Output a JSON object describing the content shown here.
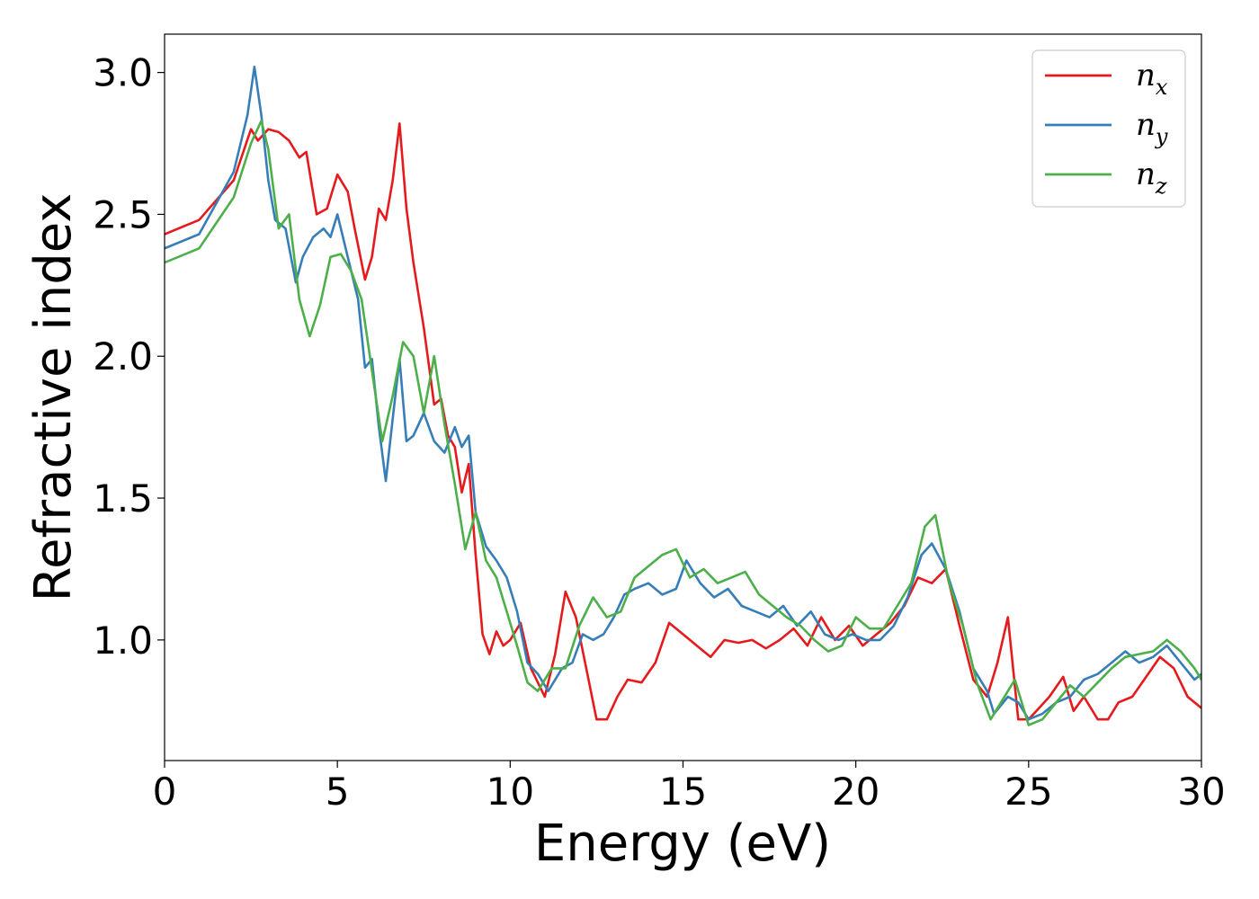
{
  "chart_data": {
    "type": "line",
    "xlabel": "Energy (eV)",
    "ylabel": "Refractive index",
    "xlim": [
      0,
      30
    ],
    "ylim": [
      0.575,
      3.135
    ],
    "xticks": [
      0,
      5,
      10,
      15,
      20,
      25,
      30
    ],
    "yticks": [
      1.0,
      1.5,
      2.0,
      2.5,
      3.0
    ],
    "grid": false,
    "legend_position": "top-right",
    "series": [
      {
        "name": "n_x",
        "label_base": "n",
        "label_sub": "x",
        "color": "#e41a1c",
        "x": [
          0,
          1,
          2,
          2.5,
          2.7,
          3,
          3.3,
          3.6,
          3.9,
          4.1,
          4.4,
          4.7,
          5,
          5.3,
          5.5,
          5.8,
          6,
          6.2,
          6.4,
          6.6,
          6.8,
          7,
          7.2,
          7.5,
          7.8,
          8,
          8.2,
          8.4,
          8.6,
          8.8,
          9,
          9.2,
          9.4,
          9.6,
          9.8,
          10,
          10.3,
          10.6,
          11,
          11.3,
          11.6,
          11.9,
          12.2,
          12.5,
          12.8,
          13.1,
          13.4,
          13.8,
          14.2,
          14.6,
          15,
          15.4,
          15.8,
          16.2,
          16.6,
          17,
          17.4,
          17.8,
          18.2,
          18.6,
          19,
          19.4,
          19.8,
          20.2,
          20.6,
          21,
          21.4,
          21.8,
          22.2,
          22.6,
          23,
          23.4,
          23.8,
          24.1,
          24.4,
          24.7,
          25,
          25.3,
          25.6,
          26,
          26.3,
          26.6,
          27,
          27.3,
          27.6,
          28,
          28.4,
          28.8,
          29.2,
          29.6,
          30
        ],
        "y": [
          2.43,
          2.48,
          2.62,
          2.8,
          2.76,
          2.8,
          2.79,
          2.76,
          2.7,
          2.72,
          2.5,
          2.52,
          2.64,
          2.58,
          2.45,
          2.27,
          2.35,
          2.52,
          2.48,
          2.62,
          2.82,
          2.52,
          2.33,
          2.1,
          1.83,
          1.85,
          1.72,
          1.68,
          1.52,
          1.62,
          1.3,
          1.02,
          0.95,
          1.03,
          0.98,
          1.0,
          1.06,
          0.9,
          0.8,
          0.95,
          1.17,
          1.08,
          0.9,
          0.72,
          0.72,
          0.8,
          0.86,
          0.85,
          0.92,
          1.06,
          1.02,
          0.98,
          0.94,
          1.0,
          0.99,
          1.0,
          0.97,
          1.0,
          1.04,
          0.98,
          1.08,
          1.0,
          1.05,
          0.98,
          1.02,
          1.06,
          1.12,
          1.22,
          1.2,
          1.25,
          1.05,
          0.86,
          0.8,
          0.92,
          1.08,
          0.72,
          0.72,
          0.76,
          0.8,
          0.87,
          0.75,
          0.8,
          0.72,
          0.72,
          0.78,
          0.8,
          0.87,
          0.94,
          0.9,
          0.8,
          0.76
        ],
        "values_estimated": true
      },
      {
        "name": "n_y",
        "label_base": "n",
        "label_sub": "y",
        "color": "#377eb8",
        "x": [
          0,
          1,
          2,
          2.4,
          2.6,
          2.8,
          3,
          3.2,
          3.5,
          3.8,
          4,
          4.3,
          4.6,
          4.8,
          5,
          5.3,
          5.6,
          5.8,
          6,
          6.2,
          6.4,
          6.6,
          6.8,
          7,
          7.2,
          7.5,
          7.8,
          8.1,
          8.4,
          8.6,
          8.8,
          9,
          9.3,
          9.6,
          9.9,
          10.2,
          10.5,
          10.8,
          11.1,
          11.5,
          11.8,
          12.1,
          12.4,
          12.7,
          13,
          13.3,
          13.6,
          14,
          14.4,
          14.8,
          15.1,
          15.5,
          15.9,
          16.3,
          16.7,
          17.1,
          17.5,
          17.9,
          18.3,
          18.7,
          19.1,
          19.5,
          19.9,
          20.3,
          20.7,
          21.1,
          21.5,
          21.9,
          22.2,
          22.6,
          23,
          23.4,
          23.8,
          24,
          24.4,
          24.7,
          25,
          25.4,
          25.8,
          26.2,
          26.6,
          27,
          27.4,
          27.8,
          28.2,
          28.6,
          29,
          29.4,
          29.8,
          30
        ],
        "y": [
          2.38,
          2.43,
          2.65,
          2.85,
          3.02,
          2.85,
          2.62,
          2.48,
          2.45,
          2.26,
          2.35,
          2.42,
          2.45,
          2.42,
          2.5,
          2.35,
          2.2,
          1.96,
          1.99,
          1.75,
          1.56,
          1.78,
          1.99,
          1.7,
          1.72,
          1.8,
          1.7,
          1.66,
          1.75,
          1.68,
          1.72,
          1.45,
          1.33,
          1.28,
          1.22,
          1.1,
          0.92,
          0.88,
          0.82,
          0.9,
          0.92,
          1.02,
          1.0,
          1.02,
          1.08,
          1.16,
          1.18,
          1.2,
          1.16,
          1.18,
          1.28,
          1.2,
          1.15,
          1.18,
          1.12,
          1.1,
          1.08,
          1.12,
          1.05,
          1.1,
          1.02,
          1.0,
          1.02,
          1.0,
          1.0,
          1.05,
          1.15,
          1.3,
          1.34,
          1.25,
          1.1,
          0.9,
          0.82,
          0.74,
          0.8,
          0.78,
          0.72,
          0.74,
          0.78,
          0.8,
          0.86,
          0.88,
          0.92,
          0.96,
          0.92,
          0.94,
          0.98,
          0.92,
          0.86,
          0.88
        ],
        "values_estimated": true
      },
      {
        "name": "n_z",
        "label_base": "n",
        "label_sub": "z",
        "color": "#4daf4a",
        "x": [
          0,
          1,
          2,
          2.5,
          2.8,
          3,
          3.3,
          3.6,
          3.9,
          4.2,
          4.5,
          4.8,
          5.1,
          5.4,
          5.7,
          6,
          6.3,
          6.6,
          6.9,
          7.2,
          7.5,
          7.8,
          8.1,
          8.4,
          8.7,
          9,
          9.3,
          9.6,
          9.9,
          10.2,
          10.5,
          10.8,
          11.2,
          11.6,
          12,
          12.4,
          12.8,
          13.2,
          13.6,
          14,
          14.4,
          14.8,
          15.2,
          15.6,
          16,
          16.4,
          16.8,
          17.2,
          17.6,
          18,
          18.4,
          18.8,
          19.2,
          19.6,
          20,
          20.4,
          20.8,
          21.2,
          21.6,
          22,
          22.3,
          22.7,
          23.1,
          23.5,
          23.9,
          24.2,
          24.6,
          25,
          25.4,
          25.8,
          26.2,
          26.6,
          27,
          27.4,
          27.8,
          28.2,
          28.6,
          29,
          29.4,
          29.8,
          30
        ],
        "y": [
          2.33,
          2.38,
          2.56,
          2.75,
          2.83,
          2.73,
          2.45,
          2.5,
          2.2,
          2.07,
          2.18,
          2.35,
          2.36,
          2.3,
          2.2,
          1.95,
          1.7,
          1.86,
          2.05,
          2.0,
          1.8,
          2.0,
          1.76,
          1.55,
          1.32,
          1.45,
          1.28,
          1.22,
          1.1,
          0.98,
          0.85,
          0.82,
          0.9,
          0.9,
          1.05,
          1.15,
          1.08,
          1.1,
          1.22,
          1.26,
          1.3,
          1.32,
          1.22,
          1.25,
          1.2,
          1.22,
          1.24,
          1.16,
          1.12,
          1.08,
          1.05,
          1.0,
          0.96,
          0.98,
          1.08,
          1.04,
          1.04,
          1.12,
          1.2,
          1.4,
          1.44,
          1.2,
          1.05,
          0.85,
          0.72,
          0.78,
          0.86,
          0.7,
          0.72,
          0.78,
          0.84,
          0.8,
          0.85,
          0.9,
          0.94,
          0.95,
          0.96,
          1.0,
          0.96,
          0.9,
          0.86
        ],
        "values_estimated": true
      }
    ]
  }
}
